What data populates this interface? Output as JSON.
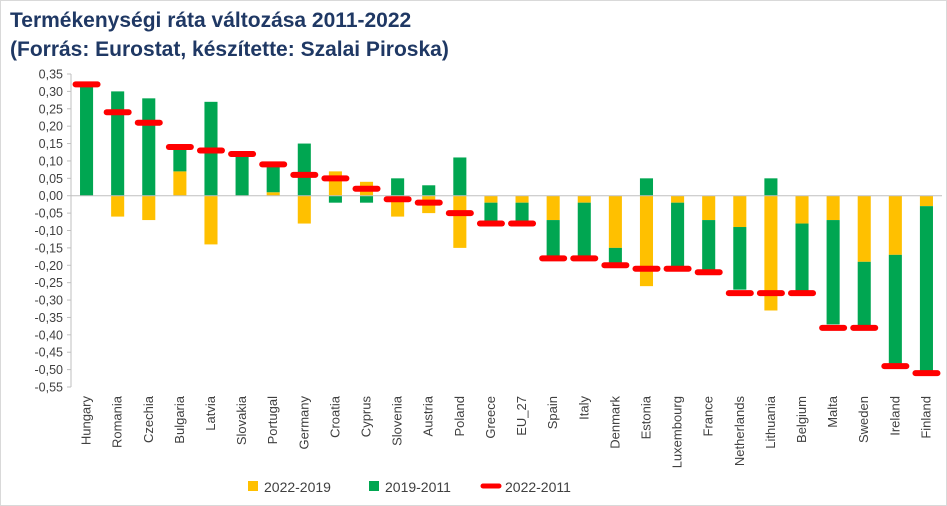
{
  "chart_data": {
    "type": "bar",
    "title": "Termékenységi ráta változása 2011-2022",
    "subtitle": "(Forrás: Eurostat, készítette: Szalai Piroska)",
    "ylim": [
      -0.55,
      0.35
    ],
    "ytick_step": 0.05,
    "ytick_labels": [
      "0,35",
      "0,30",
      "0,25",
      "0,20",
      "0,15",
      "0,10",
      "0,05",
      "0,00",
      "-0,05",
      "-0,10",
      "-0,15",
      "-0,20",
      "-0,25",
      "-0,30",
      "-0,35",
      "-0,40",
      "-0,45",
      "-0,50",
      "-0,55"
    ],
    "grid": false,
    "legend_position": "bottom",
    "categories": [
      "Hungary",
      "Romania",
      "Czechia",
      "Bulgaria",
      "Latvia",
      "Slovakia",
      "Portugal",
      "Germany",
      "Croatia",
      "Cyprus",
      "Slovenia",
      "Austria",
      "Poland",
      "Greece",
      "EU_27",
      "Spain",
      "Italy",
      "Denmark",
      "Estonia",
      "Luxembourg",
      "France",
      "Netherlands",
      "Lithuania",
      "Belgium",
      "Malta",
      "Sweden",
      "Ireland",
      "Finland"
    ],
    "series": [
      {
        "name": "2022-2019",
        "color": "#ffc000",
        "mark": "stacked-bar",
        "values": [
          0.0,
          -0.06,
          -0.07,
          0.07,
          -0.14,
          0.0,
          0.01,
          -0.08,
          0.07,
          0.04,
          -0.06,
          -0.05,
          -0.15,
          -0.02,
          -0.02,
          -0.07,
          -0.02,
          -0.15,
          -0.26,
          -0.02,
          -0.07,
          -0.09,
          -0.33,
          -0.08,
          -0.07,
          -0.19,
          -0.17,
          -0.03
        ]
      },
      {
        "name": "2019-2011",
        "color": "#00a651",
        "mark": "stacked-bar",
        "values": [
          0.32,
          0.3,
          0.28,
          0.07,
          0.27,
          0.12,
          0.08,
          0.15,
          -0.02,
          -0.02,
          0.05,
          0.03,
          0.11,
          -0.06,
          -0.06,
          -0.11,
          -0.16,
          -0.05,
          0.05,
          -0.19,
          -0.15,
          -0.18,
          0.05,
          -0.2,
          -0.3,
          -0.19,
          -0.32,
          -0.48
        ]
      },
      {
        "name": "2022-2011",
        "color": "#ff0000",
        "mark": "dash",
        "values": [
          0.32,
          0.24,
          0.21,
          0.14,
          0.13,
          0.12,
          0.09,
          0.06,
          0.05,
          0.02,
          -0.01,
          -0.02,
          -0.05,
          -0.08,
          -0.08,
          -0.18,
          -0.18,
          -0.2,
          -0.21,
          -0.21,
          -0.22,
          -0.28,
          -0.28,
          -0.28,
          -0.38,
          -0.38,
          -0.49,
          -0.51
        ]
      }
    ]
  }
}
